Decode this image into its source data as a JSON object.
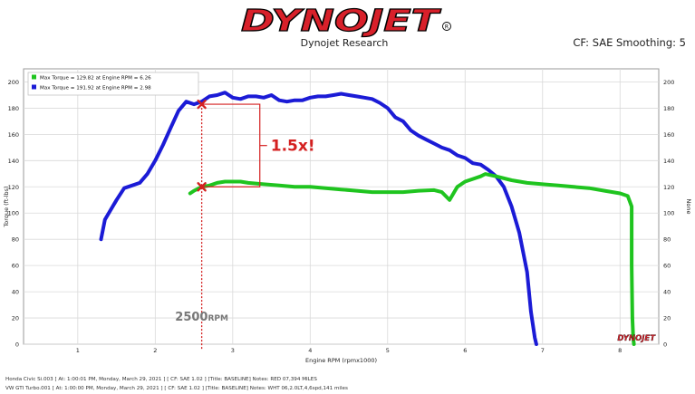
{
  "header": {
    "logo_text": "DYNOJET",
    "subtitle": "Dynojet Research",
    "cf_text": "CF: SAE Smoothing: 5"
  },
  "colors": {
    "blue": "#1b1bd6",
    "green": "#1fc41f",
    "red": "#d42020",
    "logo_red": "#d8202a"
  },
  "chart_data": {
    "type": "line",
    "title": "",
    "xlabel": "Engine RPM (rpmx1000)",
    "ylabel": "Torque (ft-lbs)",
    "y2label": "None",
    "xlim": [
      0.3,
      8.5
    ],
    "ylim": [
      0,
      210
    ],
    "xticks": [
      "1",
      "2",
      "3",
      "4",
      "5",
      "6",
      "7",
      "8"
    ],
    "yticks": [
      "0",
      "20",
      "40",
      "60",
      "80",
      "100",
      "120",
      "140",
      "160",
      "180",
      "200"
    ],
    "grid": true,
    "legend_position": "top-left",
    "legend": [
      {
        "label": "Max Torque = 129.82 at Engine RPM = 6.26",
        "color": "#1fc41f"
      },
      {
        "label": "Max Torque = 191.92 at Engine RPM = 2.98",
        "color": "#1b1bd6"
      }
    ],
    "series": [
      {
        "color": "#1b1bd6",
        "x": [
          1.3,
          1.35,
          1.5,
          1.6,
          1.7,
          1.8,
          1.9,
          2.0,
          2.1,
          2.2,
          2.3,
          2.4,
          2.5,
          2.6,
          2.7,
          2.8,
          2.9,
          3.0,
          3.1,
          3.2,
          3.3,
          3.4,
          3.5,
          3.6,
          3.7,
          3.8,
          3.9,
          4.0,
          4.1,
          4.2,
          4.3,
          4.4,
          4.5,
          4.6,
          4.7,
          4.8,
          4.9,
          5.0,
          5.1,
          5.2,
          5.3,
          5.4,
          5.5,
          5.6,
          5.7,
          5.8,
          5.9,
          6.0,
          6.1,
          6.2,
          6.3,
          6.4,
          6.5,
          6.6,
          6.7,
          6.8,
          6.85,
          6.9,
          6.92
        ],
        "y": [
          80,
          95,
          110,
          119,
          121,
          123,
          130,
          140,
          152,
          165,
          178,
          185,
          183,
          185,
          189,
          190,
          191.9,
          188,
          187,
          189,
          189,
          188,
          190,
          186,
          185,
          186,
          186,
          188,
          189,
          189,
          190,
          191,
          190,
          189,
          188,
          187,
          184,
          180,
          173,
          170,
          163,
          159,
          156,
          153,
          150,
          148,
          144,
          142,
          138,
          137,
          133,
          128,
          120,
          105,
          85,
          55,
          25,
          5,
          0
        ]
      },
      {
        "color": "#1fc41f",
        "x": [
          2.45,
          2.5,
          2.6,
          2.7,
          2.8,
          2.9,
          3.0,
          3.1,
          3.2,
          3.4,
          3.6,
          3.8,
          4.0,
          4.2,
          4.4,
          4.6,
          4.8,
          5.0,
          5.2,
          5.4,
          5.6,
          5.7,
          5.8,
          5.9,
          6.0,
          6.1,
          6.2,
          6.26,
          6.4,
          6.6,
          6.8,
          7.0,
          7.2,
          7.4,
          7.6,
          7.8,
          8.0,
          8.1,
          8.15,
          8.15,
          8.16,
          8.17,
          8.18
        ],
        "y": [
          115,
          117,
          120,
          121,
          123,
          124,
          124,
          124,
          123,
          122,
          121,
          120,
          120,
          119,
          118,
          117,
          116,
          116,
          116,
          117,
          117.5,
          116,
          110,
          120,
          124,
          126,
          128,
          129.82,
          128,
          125,
          123,
          122,
          121,
          120,
          119,
          117,
          115,
          113,
          105,
          60,
          20,
          5,
          0
        ]
      }
    ],
    "annotations": [
      {
        "text": "1.5x!"
      },
      {
        "text": "2500RPM"
      }
    ],
    "watermark": "DYNOJET"
  },
  "footer": {
    "line1": "Honda Civic Si.003 [ At: 1:00:01 PM, Monday, March 29, 2021 ] [ CF: SAE 1.02 ] [Title: BASELINE]  Notes: RED 07,394 MILES",
    "line2": "VW GTI Turbo.001 [ At: 1:00:00 PM, Monday, March 29, 2021 ] [ CF: SAE 1.02 ] [Title: BASELINE]  Notes: WHT 06,2.0LT,4,6spd,141 miles"
  }
}
